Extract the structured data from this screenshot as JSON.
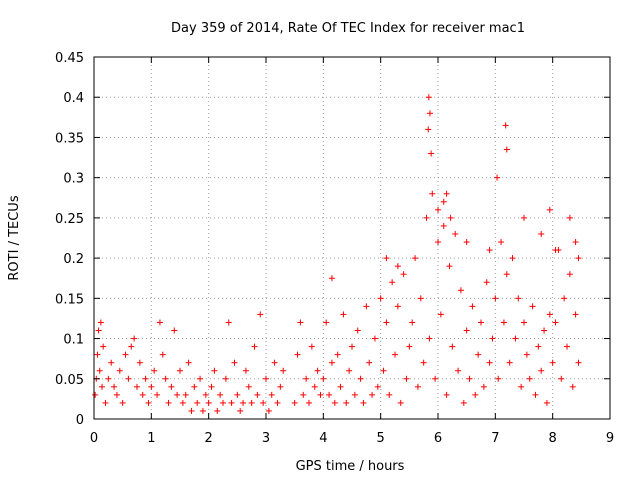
{
  "chart_data": {
    "type": "scatter",
    "title": "Day 359 of 2014, Rate Of TEC Index for receiver mac1",
    "xlabel": "GPS time / hours",
    "ylabel": "ROTI / TECUs",
    "xlim": [
      0,
      9
    ],
    "ylim": [
      0,
      0.45
    ],
    "xticks": [
      "0",
      "1",
      "2",
      "3",
      "4",
      "5",
      "6",
      "7",
      "8",
      "9"
    ],
    "yticks": [
      "0",
      "0.05",
      "0.1",
      "0.15",
      "0.2",
      "0.25",
      "0.3",
      "0.35",
      "0.4",
      "0.45"
    ],
    "grid": true,
    "marker": "+",
    "color": "#ff0000",
    "series": [
      {
        "name": "mac1",
        "x": [
          0.02,
          0.04,
          0.06,
          0.08,
          0.1,
          0.12,
          0.14,
          0.16,
          0.2,
          0.25,
          0.3,
          0.35,
          0.4,
          0.45,
          0.5,
          0.55,
          0.6,
          0.65,
          0.7,
          0.75,
          0.8,
          0.85,
          0.9,
          0.95,
          1.0,
          1.05,
          1.1,
          1.15,
          1.2,
          1.25,
          1.3,
          1.35,
          1.4,
          1.45,
          1.5,
          1.55,
          1.6,
          1.65,
          1.7,
          1.75,
          1.8,
          1.85,
          1.9,
          1.95,
          2.0,
          2.05,
          2.1,
          2.15,
          2.2,
          2.25,
          2.3,
          2.35,
          2.4,
          2.45,
          2.5,
          2.55,
          2.6,
          2.65,
          2.7,
          2.75,
          2.8,
          2.85,
          2.9,
          2.95,
          3.0,
          3.05,
          3.1,
          3.15,
          3.2,
          3.25,
          3.3,
          3.5,
          3.55,
          3.6,
          3.65,
          3.7,
          3.75,
          3.8,
          3.85,
          3.9,
          3.95,
          4.0,
          4.05,
          4.1,
          4.15,
          4.2,
          4.25,
          4.3,
          4.35,
          4.4,
          4.45,
          4.5,
          4.55,
          4.6,
          4.65,
          4.7,
          4.75,
          4.8,
          4.85,
          4.9,
          4.95,
          5.0,
          5.05,
          5.1,
          5.15,
          5.2,
          5.25,
          5.3,
          5.35,
          5.4,
          5.45,
          5.5,
          5.55,
          5.6,
          5.65,
          5.7,
          5.75,
          5.8,
          5.85,
          5.9,
          5.95,
          6.0,
          6.05,
          6.1,
          6.15,
          6.2,
          6.25,
          6.3,
          6.35,
          6.4,
          6.45,
          6.5,
          6.55,
          6.6,
          6.65,
          6.7,
          6.75,
          6.8,
          6.85,
          6.9,
          6.95,
          7.0,
          7.05,
          7.1,
          7.15,
          7.2,
          7.25,
          7.3,
          7.35,
          7.4,
          7.45,
          7.5,
          7.55,
          7.6,
          7.65,
          7.7,
          7.75,
          7.8,
          7.85,
          7.9,
          7.95,
          8.0,
          8.05,
          8.1,
          8.15,
          8.2,
          8.25,
          8.3,
          8.35,
          8.4,
          8.45,
          5.84,
          5.86,
          5.83,
          5.88,
          7.18,
          7.2,
          7.03,
          6.15,
          6.22,
          4.15,
          5.1,
          5.3,
          6.0,
          6.1,
          6.5,
          6.9,
          7.5,
          7.8,
          7.95,
          8.05,
          8.3,
          8.4,
          8.45
        ],
        "y": [
          0.03,
          0.05,
          0.08,
          0.11,
          0.06,
          0.12,
          0.04,
          0.09,
          0.02,
          0.05,
          0.07,
          0.04,
          0.03,
          0.06,
          0.02,
          0.08,
          0.05,
          0.09,
          0.1,
          0.04,
          0.07,
          0.03,
          0.05,
          0.02,
          0.04,
          0.06,
          0.03,
          0.12,
          0.08,
          0.05,
          0.02,
          0.04,
          0.11,
          0.03,
          0.06,
          0.02,
          0.03,
          0.07,
          0.01,
          0.04,
          0.02,
          0.05,
          0.01,
          0.03,
          0.02,
          0.04,
          0.06,
          0.01,
          0.03,
          0.02,
          0.05,
          0.12,
          0.02,
          0.07,
          0.03,
          0.01,
          0.02,
          0.06,
          0.04,
          0.02,
          0.09,
          0.03,
          0.13,
          0.02,
          0.05,
          0.01,
          0.03,
          0.07,
          0.02,
          0.04,
          0.06,
          0.02,
          0.08,
          0.12,
          0.03,
          0.05,
          0.02,
          0.09,
          0.04,
          0.06,
          0.03,
          0.05,
          0.12,
          0.03,
          0.07,
          0.02,
          0.08,
          0.04,
          0.13,
          0.02,
          0.06,
          0.09,
          0.03,
          0.11,
          0.05,
          0.02,
          0.14,
          0.07,
          0.03,
          0.1,
          0.04,
          0.15,
          0.06,
          0.12,
          0.03,
          0.17,
          0.08,
          0.14,
          0.02,
          0.18,
          0.05,
          0.09,
          0.12,
          0.2,
          0.04,
          0.15,
          0.07,
          0.25,
          0.1,
          0.28,
          0.05,
          0.22,
          0.13,
          0.27,
          0.03,
          0.19,
          0.09,
          0.23,
          0.06,
          0.16,
          0.02,
          0.11,
          0.05,
          0.14,
          0.03,
          0.08,
          0.12,
          0.04,
          0.17,
          0.07,
          0.1,
          0.15,
          0.05,
          0.22,
          0.12,
          0.18,
          0.07,
          0.2,
          0.1,
          0.15,
          0.04,
          0.12,
          0.08,
          0.05,
          0.14,
          0.03,
          0.09,
          0.06,
          0.11,
          0.02,
          0.13,
          0.07,
          0.12,
          0.21,
          0.05,
          0.15,
          0.09,
          0.18,
          0.04,
          0.13,
          0.07,
          0.4,
          0.38,
          0.36,
          0.33,
          0.365,
          0.335,
          0.3,
          0.28,
          0.25,
          0.175,
          0.2,
          0.19,
          0.26,
          0.24,
          0.22,
          0.21,
          0.25,
          0.23,
          0.26,
          0.21,
          0.25,
          0.22,
          0.2
        ]
      }
    ]
  }
}
